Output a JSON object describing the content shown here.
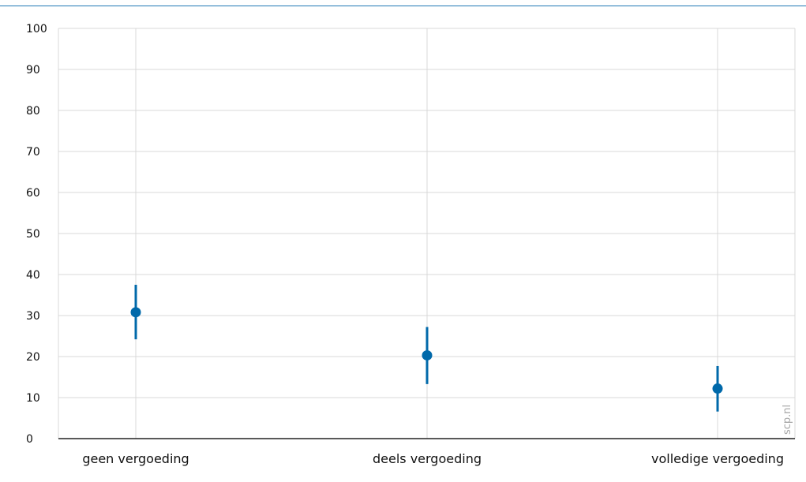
{
  "chart_data": {
    "type": "scatter",
    "categories": [
      "geen vergoeding",
      "deels vergoeding",
      "volledige vergoeding"
    ],
    "series": [
      {
        "values": [
          30.8,
          20.3,
          12.2
        ],
        "lower": [
          24.2,
          13.3,
          6.6
        ],
        "upper": [
          37.5,
          27.2,
          17.7
        ]
      }
    ],
    "ylim": [
      0,
      100
    ],
    "yticks": [
      0,
      10,
      20,
      30,
      40,
      50,
      60,
      70,
      80,
      90,
      100
    ],
    "ytick_labels": [
      "0",
      "10",
      "20",
      "30",
      "40",
      "50",
      "60",
      "70",
      "80",
      "90",
      "100"
    ],
    "grid": true,
    "title": "",
    "xlabel": "",
    "ylabel": "",
    "colors": {
      "point": "#0069aa",
      "grid": "#d9d9d9",
      "axis": "#222222",
      "top_rule": "#1f78b4"
    }
  },
  "watermark": "scp.nl"
}
